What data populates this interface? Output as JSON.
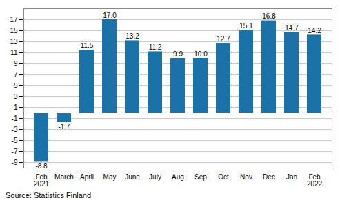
{
  "chart_data": {
    "type": "bar",
    "categories": [
      "Feb\n2021",
      "March",
      "April",
      "May",
      "June",
      "July",
      "Aug",
      "Sep",
      "Oct",
      "Nov",
      "Dec",
      "Jan",
      "Feb\n2022"
    ],
    "values": [
      -8.8,
      -1.7,
      11.5,
      17.0,
      13.2,
      11.2,
      9.9,
      10.0,
      12.7,
      15.1,
      16.8,
      14.7,
      14.2
    ],
    "value_labels": [
      "-8.8",
      "-1.7",
      "11.5",
      "17.0",
      "13.2",
      "11.2",
      "9.9",
      "10.0",
      "12.7",
      "15.1",
      "16.8",
      "14.7",
      "14.2"
    ],
    "color": "#1a72a8",
    "ylim": [
      -10,
      19
    ],
    "yticks": [
      -9,
      -7,
      -5,
      -3,
      -1,
      1,
      3,
      5,
      7,
      9,
      11,
      13,
      15,
      17
    ],
    "grid": true,
    "data_labels": true,
    "caption": "Source: Statistics Finland"
  }
}
